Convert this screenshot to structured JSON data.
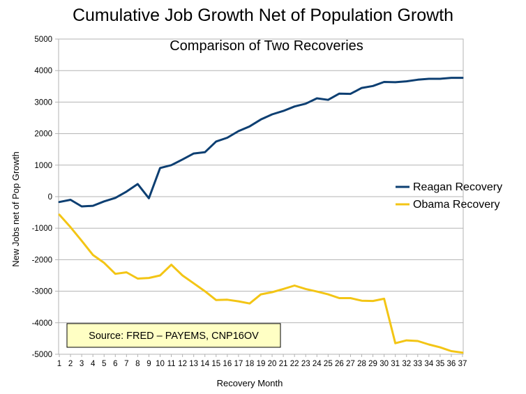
{
  "chart_data": {
    "type": "line",
    "title": "Cumulative Job Growth Net of Population Growth",
    "subtitle": "Comparison of Two Recoveries",
    "xlabel": "Recovery Month",
    "ylabel": "New Jobs net of Pop Growth",
    "x": [
      1,
      2,
      3,
      4,
      5,
      6,
      7,
      8,
      9,
      10,
      11,
      12,
      13,
      14,
      15,
      16,
      17,
      18,
      19,
      20,
      21,
      22,
      23,
      24,
      25,
      26,
      27,
      28,
      29,
      30,
      31,
      32,
      33,
      34,
      35,
      36,
      37
    ],
    "ylim": [
      -5000,
      5000
    ],
    "yticks": [
      -5000,
      -4000,
      -3000,
      -2000,
      -1000,
      0,
      1000,
      2000,
      3000,
      4000,
      5000
    ],
    "grid": true,
    "legend_position": "right",
    "series": [
      {
        "name": "Reagan Recovery",
        "color": "#0d3f72",
        "values": [
          -170,
          -100,
          -310,
          -290,
          -150,
          -40,
          160,
          400,
          -50,
          910,
          1000,
          1180,
          1370,
          1410,
          1750,
          1870,
          2080,
          2230,
          2450,
          2610,
          2720,
          2860,
          2950,
          3120,
          3070,
          3270,
          3260,
          3450,
          3510,
          3640,
          3630,
          3660,
          3710,
          3740,
          3740,
          3770,
          3770
        ]
      },
      {
        "name": "Obama Recovery",
        "color": "#f3c515",
        "values": [
          -570,
          -970,
          -1400,
          -1850,
          -2100,
          -2450,
          -2400,
          -2600,
          -2580,
          -2500,
          -2160,
          -2500,
          -2750,
          -3000,
          -3280,
          -3270,
          -3320,
          -3390,
          -3100,
          -3030,
          -2930,
          -2820,
          -2930,
          -3010,
          -3100,
          -3220,
          -3220,
          -3300,
          -3310,
          -3240,
          -4650,
          -4560,
          -4580,
          -4690,
          -4780,
          -4900,
          -4950
        ]
      }
    ],
    "annotation": "Source: FRED – PAYEMS, CNP16OV"
  }
}
